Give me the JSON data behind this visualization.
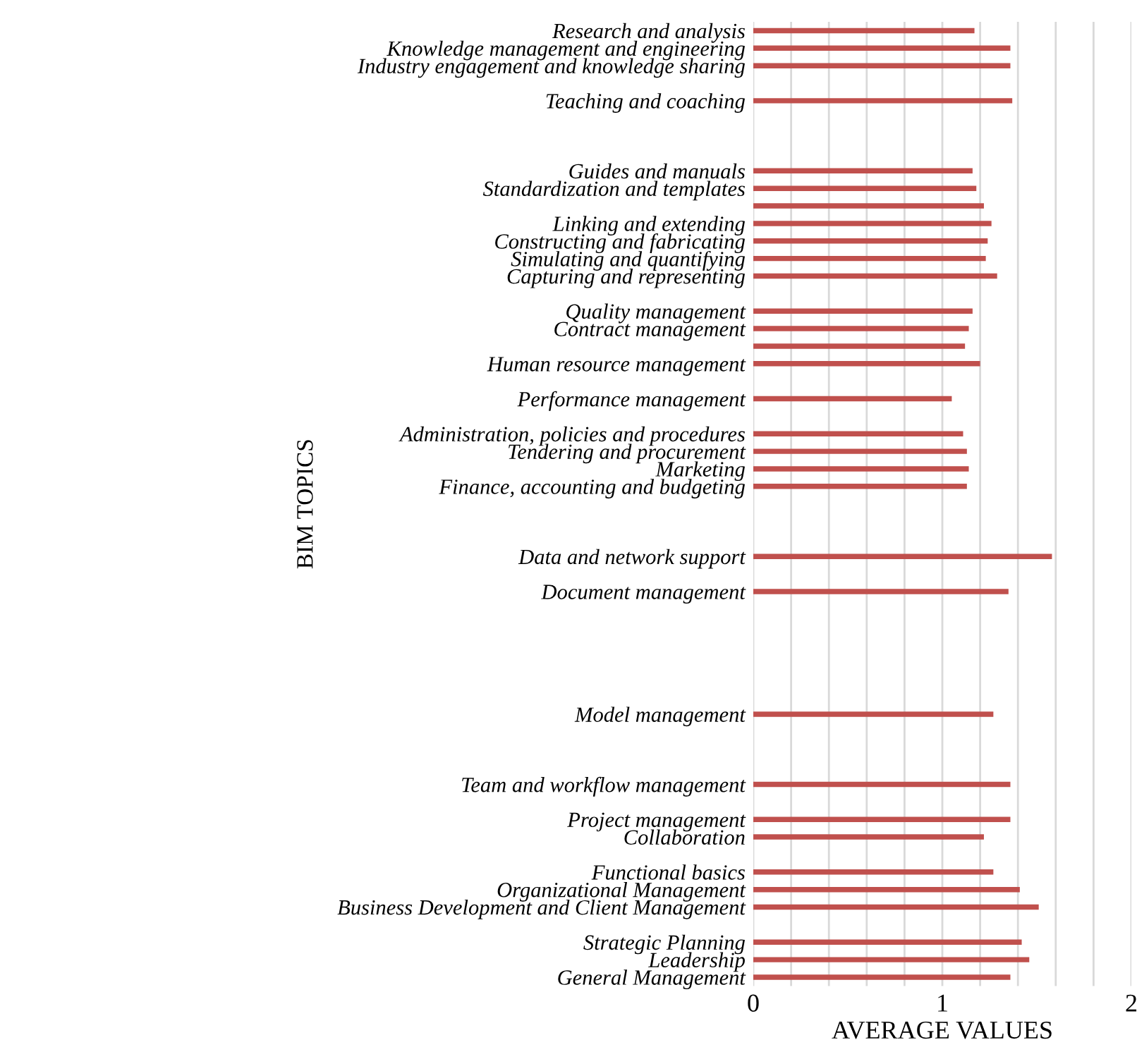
{
  "chart_data": {
    "type": "bar",
    "orientation": "horizontal",
    "ylabel": "BIM TOPICS",
    "xlabel": "AVERAGE VALUES",
    "categories": [
      "Research and analysis",
      "Knowledge management and engineering",
      "Industry engagement and knowledge sharing",
      null,
      "Teaching and coaching",
      null,
      null,
      null,
      "Guides and manuals",
      "Standardization and templates",
      null,
      "Linking and extending",
      "Constructing and fabricating",
      "Simulating and quantifying",
      "Capturing and representing",
      null,
      "Quality management",
      "Contract management",
      null,
      "Human resource management",
      null,
      "Performance management",
      null,
      "Administration, policies and procedures",
      "Tendering and procurement",
      "Marketing",
      "Finance, accounting and budgeting",
      null,
      null,
      null,
      "Data and network support",
      null,
      "Document management",
      null,
      null,
      null,
      null,
      null,
      null,
      "Model management",
      null,
      null,
      null,
      "Team and workflow management",
      null,
      "Project management",
      "Collaboration",
      null,
      "Functional basics",
      "Organizational Management",
      "Business Development and Client Management",
      null,
      "Strategic Planning",
      "Leadership",
      "General Management"
    ],
    "values": [
      1.17,
      1.36,
      1.36,
      null,
      1.37,
      null,
      null,
      null,
      1.16,
      1.18,
      1.22,
      1.26,
      1.24,
      1.23,
      1.29,
      null,
      1.16,
      1.14,
      1.12,
      1.2,
      null,
      1.05,
      null,
      1.11,
      1.13,
      1.14,
      1.13,
      null,
      null,
      null,
      1.58,
      null,
      1.35,
      null,
      null,
      null,
      null,
      null,
      null,
      1.27,
      null,
      null,
      null,
      1.36,
      null,
      1.36,
      1.22,
      null,
      1.27,
      1.41,
      1.51,
      null,
      1.42,
      1.46,
      1.36
    ],
    "color": "#c0504d",
    "xlim": [
      0,
      2
    ],
    "xticks": [
      0,
      {
        "value": 0.2,
        "label": null
      },
      {
        "value": 0.4,
        "label": null
      },
      {
        "value": 0.6,
        "label": null
      },
      {
        "value": 0.8,
        "label": null
      },
      1,
      {
        "value": 1.2,
        "label": null
      },
      {
        "value": 1.4,
        "label": null
      },
      {
        "value": 1.6,
        "label": null
      },
      {
        "value": 1.8,
        "label": null
      },
      2
    ],
    "grid": "x"
  }
}
